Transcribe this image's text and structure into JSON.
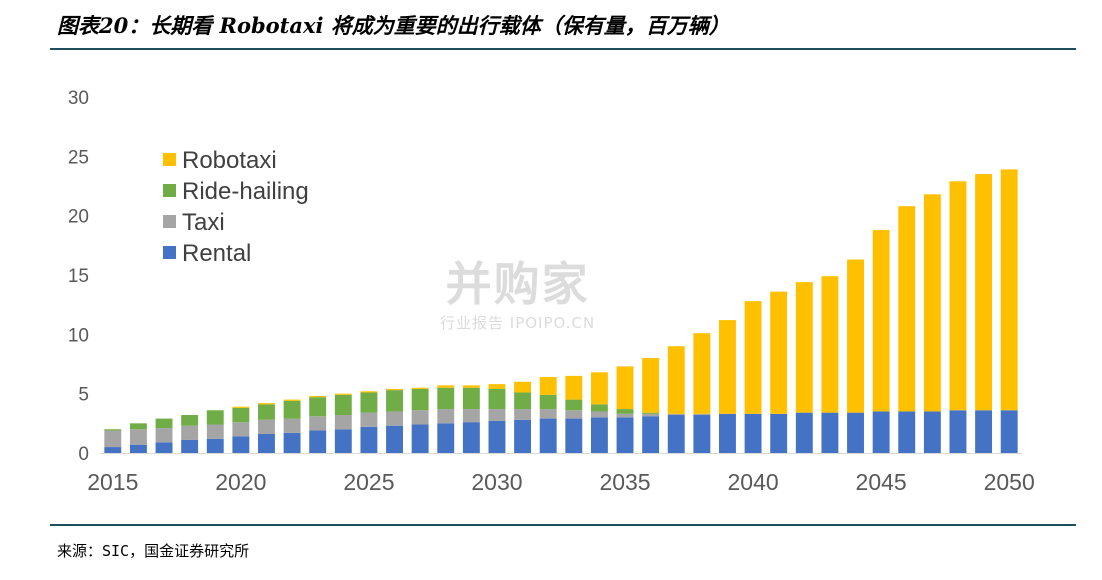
{
  "header": {
    "title": "图表20：长期看 Robotaxi 将成为重要的出行载体（保有量，百万辆）"
  },
  "footer": {
    "source": "来源：SIC，国金证券研究所"
  },
  "watermark": {
    "main": "并购家",
    "sub": "行业报告 IPOIPO.CN"
  },
  "colors": {
    "Robotaxi": "#ffc000",
    "Ride-hailing": "#70ad47",
    "Taxi": "#a5a5a5",
    "Rental": "#4472c4",
    "axis_text": "#595959",
    "rule": "#1f4e5a"
  },
  "chart_data": {
    "type": "bar",
    "stacked": true,
    "x": [
      2015,
      2016,
      2017,
      2018,
      2019,
      2020,
      2021,
      2022,
      2023,
      2024,
      2025,
      2026,
      2027,
      2028,
      2029,
      2030,
      2031,
      2032,
      2033,
      2034,
      2035,
      2036,
      2037,
      2038,
      2039,
      2040,
      2041,
      2042,
      2043,
      2044,
      2045,
      2046,
      2047,
      2048,
      2049,
      2050
    ],
    "x_ticks": [
      2015,
      2020,
      2025,
      2030,
      2035,
      2040,
      2045,
      2050
    ],
    "ylim": [
      0,
      30
    ],
    "y_ticks": [
      0,
      5,
      10,
      15,
      20,
      25,
      30
    ],
    "legend_position": "top-left",
    "series": [
      {
        "name": "Rental",
        "values": [
          0.5,
          0.7,
          0.9,
          1.1,
          1.2,
          1.4,
          1.6,
          1.7,
          1.9,
          2.0,
          2.2,
          2.3,
          2.4,
          2.5,
          2.6,
          2.7,
          2.8,
          2.9,
          2.9,
          3.0,
          3.0,
          3.1,
          3.2,
          3.2,
          3.3,
          3.3,
          3.3,
          3.4,
          3.4,
          3.4,
          3.5,
          3.5,
          3.5,
          3.6,
          3.6,
          3.6
        ]
      },
      {
        "name": "Taxi",
        "values": [
          1.4,
          1.3,
          1.2,
          1.2,
          1.2,
          1.2,
          1.2,
          1.2,
          1.2,
          1.2,
          1.2,
          1.2,
          1.2,
          1.2,
          1.1,
          1.0,
          0.9,
          0.8,
          0.7,
          0.5,
          0.3,
          0.2,
          0.1,
          0.1,
          0.0,
          0.0,
          0.0,
          0.0,
          0.0,
          0.0,
          0.0,
          0.0,
          0.0,
          0.0,
          0.0,
          0.0
        ]
      },
      {
        "name": "Ride-hailing",
        "values": [
          0.1,
          0.5,
          0.8,
          0.9,
          1.2,
          1.2,
          1.3,
          1.5,
          1.6,
          1.7,
          1.7,
          1.8,
          1.8,
          1.8,
          1.8,
          1.7,
          1.4,
          1.2,
          0.9,
          0.6,
          0.4,
          0.1,
          0.0,
          0.0,
          0.0,
          0.0,
          0.0,
          0.0,
          0.0,
          0.0,
          0.0,
          0.0,
          0.0,
          0.0,
          0.0,
          0.0
        ]
      },
      {
        "name": "Robotaxi",
        "values": [
          0.0,
          0.0,
          0.0,
          0.0,
          0.0,
          0.1,
          0.1,
          0.1,
          0.1,
          0.1,
          0.1,
          0.1,
          0.1,
          0.2,
          0.2,
          0.4,
          0.9,
          1.5,
          2.0,
          2.7,
          3.6,
          4.6,
          5.7,
          6.8,
          7.9,
          9.5,
          10.3,
          11.0,
          11.5,
          12.9,
          15.3,
          17.3,
          18.3,
          19.3,
          19.9,
          20.3
        ]
      }
    ]
  }
}
